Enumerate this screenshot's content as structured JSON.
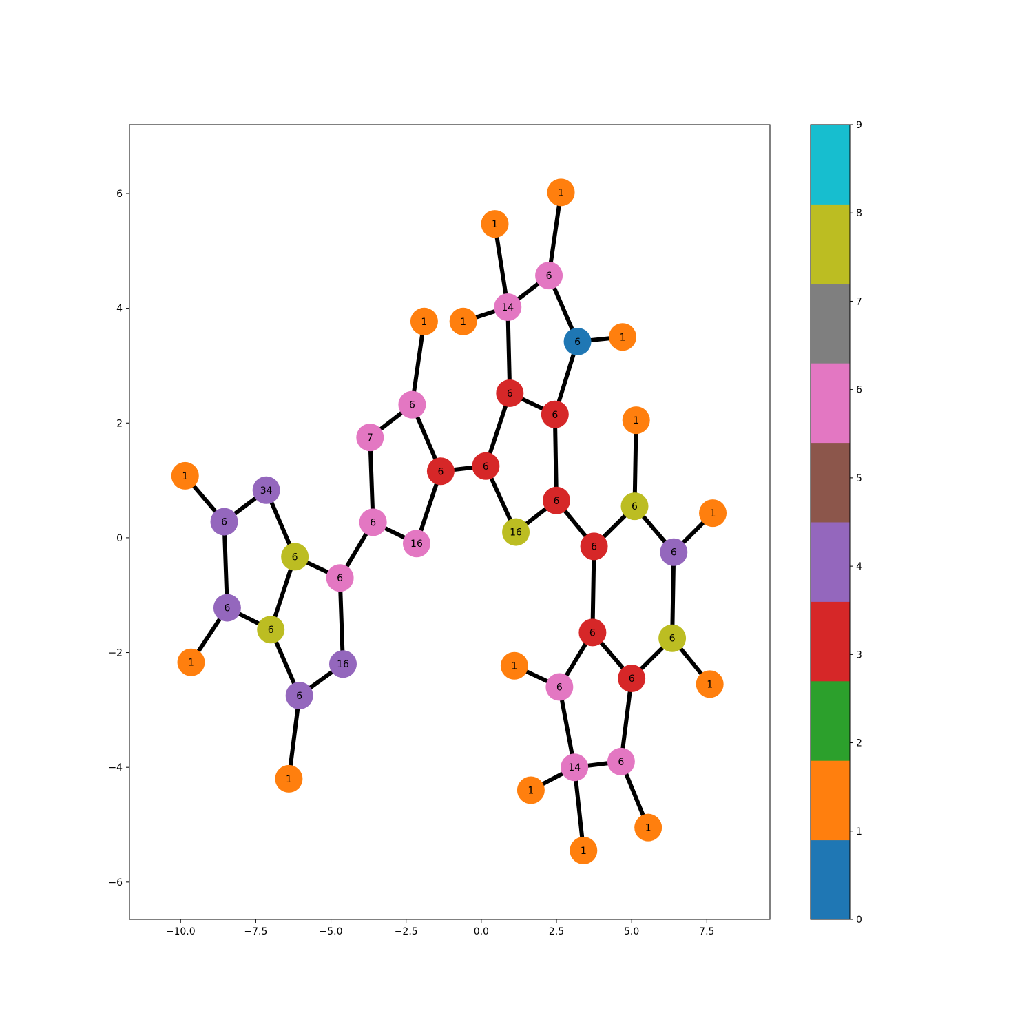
{
  "chart_data": {
    "type": "graph",
    "title": "",
    "xlabel": "",
    "ylabel": "",
    "xlim": [
      -11.7,
      9.6
    ],
    "ylim": [
      -6.65,
      7.2
    ],
    "x_ticks": [
      -10.0,
      -7.5,
      -5.0,
      -2.5,
      0.0,
      2.5,
      5.0,
      7.5
    ],
    "x_tick_labels": [
      "−10.0",
      "−7.5",
      "−5.0",
      "−2.5",
      "0.0",
      "2.5",
      "5.0",
      "7.5"
    ],
    "y_ticks": [
      -6,
      -4,
      -2,
      0,
      2,
      4,
      6
    ],
    "y_tick_labels": [
      "−6",
      "−4",
      "−2",
      "0",
      "2",
      "4",
      "6"
    ],
    "colorbar": {
      "min": 0,
      "max": 9,
      "ticks": [
        0,
        1,
        2,
        3,
        4,
        5,
        6,
        7,
        8,
        9
      ],
      "tick_labels": [
        "0",
        "1",
        "2",
        "3",
        "4",
        "5",
        "6",
        "7",
        "8",
        "9"
      ],
      "colors": [
        "#1f77b4",
        "#ff7f0e",
        "#2ca02c",
        "#d62728",
        "#9467bd",
        "#8c564b",
        "#e377c2",
        "#7f7f7f",
        "#bcbd22",
        "#17becf"
      ]
    },
    "nodes": [
      {
        "x": -9.85,
        "y": 1.08,
        "label": "1",
        "color": 1
      },
      {
        "x": -8.55,
        "y": 0.28,
        "label": "6",
        "color": 4
      },
      {
        "x": -7.15,
        "y": 0.83,
        "label": "34",
        "color": 4
      },
      {
        "x": -6.2,
        "y": -0.33,
        "label": "6",
        "color": 8
      },
      {
        "x": -8.45,
        "y": -1.22,
        "label": "6",
        "color": 4
      },
      {
        "x": -9.65,
        "y": -2.17,
        "label": "1",
        "color": 1
      },
      {
        "x": -7.0,
        "y": -1.6,
        "label": "6",
        "color": 8
      },
      {
        "x": -6.05,
        "y": -2.75,
        "label": "6",
        "color": 4
      },
      {
        "x": -6.4,
        "y": -4.2,
        "label": "1",
        "color": 1
      },
      {
        "x": -4.6,
        "y": -2.2,
        "label": "16",
        "color": 4
      },
      {
        "x": -4.7,
        "y": -0.7,
        "label": "6",
        "color": 6
      },
      {
        "x": -3.6,
        "y": 0.27,
        "label": "6",
        "color": 6
      },
      {
        "x": -3.7,
        "y": 1.75,
        "label": "7",
        "color": 6
      },
      {
        "x": -2.3,
        "y": 2.32,
        "label": "6",
        "color": 6
      },
      {
        "x": -1.9,
        "y": 3.77,
        "label": "1",
        "color": 1
      },
      {
        "x": -1.35,
        "y": 1.16,
        "label": "6",
        "color": 3
      },
      {
        "x": -2.15,
        "y": -0.1,
        "label": "16",
        "color": 6
      },
      {
        "x": 0.15,
        "y": 1.25,
        "label": "6",
        "color": 3
      },
      {
        "x": 1.15,
        "y": 0.1,
        "label": "16",
        "color": 8
      },
      {
        "x": 0.95,
        "y": 2.52,
        "label": "6",
        "color": 3
      },
      {
        "x": 2.45,
        "y": 2.15,
        "label": "6",
        "color": 3
      },
      {
        "x": 2.5,
        "y": 0.65,
        "label": "6",
        "color": 3
      },
      {
        "x": 3.2,
        "y": 3.42,
        "label": "6",
        "color": 0
      },
      {
        "x": 4.7,
        "y": 3.5,
        "label": "1",
        "color": 1
      },
      {
        "x": 2.25,
        "y": 4.57,
        "label": "6",
        "color": 6
      },
      {
        "x": 2.65,
        "y": 6.02,
        "label": "1",
        "color": 1
      },
      {
        "x": 0.88,
        "y": 4.02,
        "label": "14",
        "color": 6
      },
      {
        "x": 0.45,
        "y": 5.47,
        "label": "1",
        "color": 1
      },
      {
        "x": -0.6,
        "y": 3.77,
        "label": "1",
        "color": 1
      },
      {
        "x": 3.75,
        "y": -0.15,
        "label": "6",
        "color": 3
      },
      {
        "x": 5.1,
        "y": 0.55,
        "label": "6",
        "color": 8
      },
      {
        "x": 5.15,
        "y": 2.05,
        "label": "1",
        "color": 1
      },
      {
        "x": 6.4,
        "y": -0.25,
        "label": "6",
        "color": 4
      },
      {
        "x": 7.7,
        "y": 0.43,
        "label": "1",
        "color": 1
      },
      {
        "x": 6.35,
        "y": -1.75,
        "label": "6",
        "color": 8
      },
      {
        "x": 7.6,
        "y": -2.55,
        "label": "1",
        "color": 1
      },
      {
        "x": 3.7,
        "y": -1.65,
        "label": "6",
        "color": 3
      },
      {
        "x": 5.0,
        "y": -2.45,
        "label": "6",
        "color": 3
      },
      {
        "x": 2.6,
        "y": -2.6,
        "label": "6",
        "color": 6
      },
      {
        "x": 1.1,
        "y": -2.23,
        "label": "1",
        "color": 1
      },
      {
        "x": 3.1,
        "y": -4.0,
        "label": "14",
        "color": 6
      },
      {
        "x": 1.65,
        "y": -4.4,
        "label": "1",
        "color": 1
      },
      {
        "x": 3.4,
        "y": -5.45,
        "label": "1",
        "color": 1
      },
      {
        "x": 4.65,
        "y": -3.9,
        "label": "6",
        "color": 6
      },
      {
        "x": 5.55,
        "y": -5.05,
        "label": "1",
        "color": 1
      }
    ],
    "edges": [
      [
        0,
        1
      ],
      [
        1,
        2
      ],
      [
        2,
        3
      ],
      [
        1,
        4
      ],
      [
        4,
        5
      ],
      [
        4,
        6
      ],
      [
        6,
        3
      ],
      [
        6,
        7
      ],
      [
        7,
        8
      ],
      [
        7,
        9
      ],
      [
        9,
        10
      ],
      [
        10,
        3
      ],
      [
        10,
        11
      ],
      [
        11,
        12
      ],
      [
        12,
        13
      ],
      [
        13,
        14
      ],
      [
        13,
        15
      ],
      [
        15,
        16
      ],
      [
        16,
        11
      ],
      [
        15,
        17
      ],
      [
        17,
        18
      ],
      [
        17,
        19
      ],
      [
        19,
        20
      ],
      [
        20,
        21
      ],
      [
        21,
        18
      ],
      [
        20,
        22
      ],
      [
        22,
        23
      ],
      [
        22,
        24
      ],
      [
        24,
        25
      ],
      [
        24,
        26
      ],
      [
        26,
        27
      ],
      [
        26,
        28
      ],
      [
        26,
        19
      ],
      [
        21,
        29
      ],
      [
        29,
        30
      ],
      [
        30,
        31
      ],
      [
        30,
        32
      ],
      [
        32,
        33
      ],
      [
        32,
        34
      ],
      [
        34,
        35
      ],
      [
        34,
        37
      ],
      [
        29,
        36
      ],
      [
        36,
        37
      ],
      [
        36,
        38
      ],
      [
        38,
        39
      ],
      [
        38,
        40
      ],
      [
        40,
        41
      ],
      [
        40,
        42
      ],
      [
        40,
        43
      ],
      [
        43,
        44
      ],
      [
        43,
        37
      ]
    ]
  }
}
